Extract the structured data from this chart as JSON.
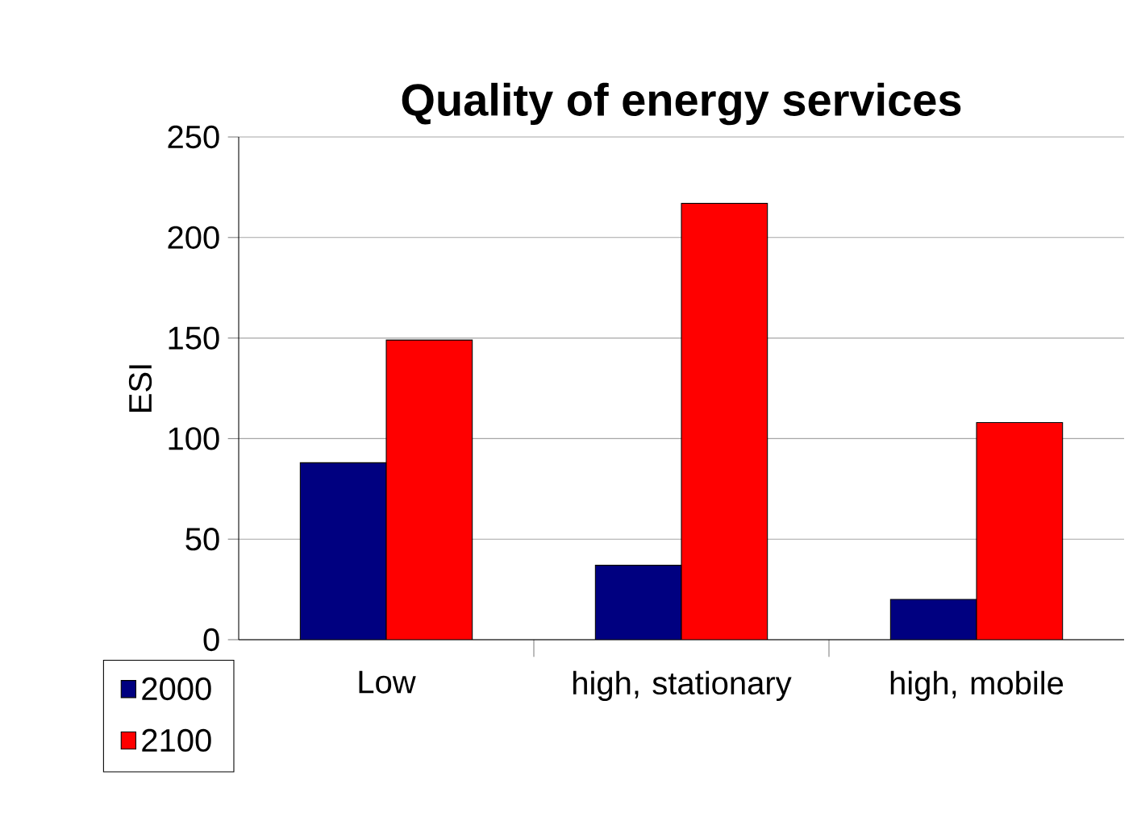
{
  "chart_data": {
    "type": "bar",
    "title": "Quality of energy services",
    "ylabel": "ESI",
    "categories": [
      "Low",
      "high, stationary",
      "high, mobile"
    ],
    "series": [
      {
        "name": "2000",
        "color": "#000080",
        "values": [
          88,
          37,
          20
        ]
      },
      {
        "name": "2100",
        "color": "#ff0000",
        "values": [
          149,
          217,
          108
        ]
      }
    ],
    "ylim": [
      0,
      250
    ],
    "yticks": [
      0,
      50,
      100,
      150,
      200,
      250
    ],
    "grid": "y",
    "legend": "bottom left"
  }
}
